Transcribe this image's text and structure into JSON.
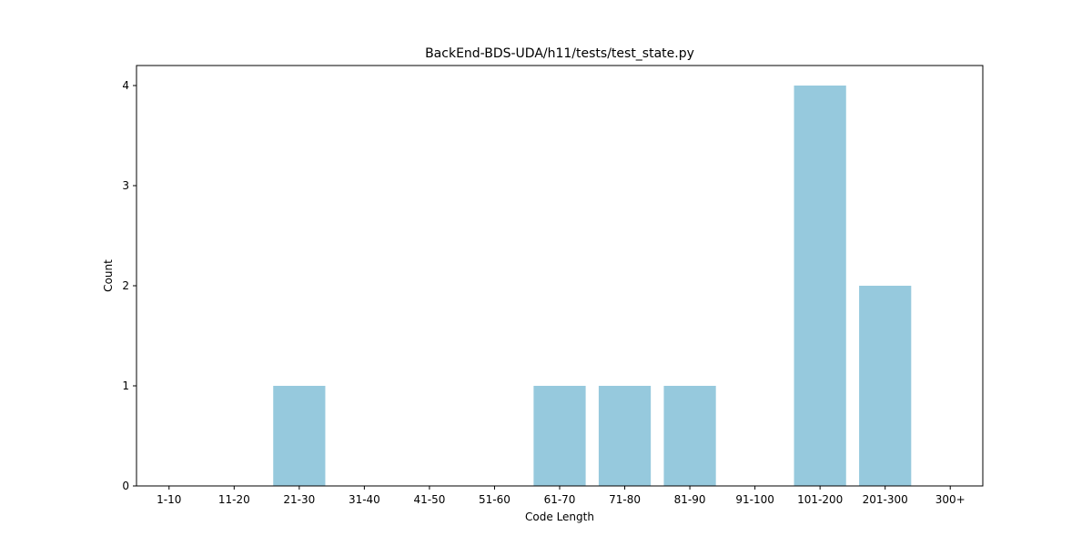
{
  "chart_data": {
    "type": "bar",
    "title": "BackEnd-BDS-UDA/h11/tests/test_state.py",
    "xlabel": "Code Length",
    "ylabel": "Count",
    "categories": [
      "1-10",
      "11-20",
      "21-30",
      "31-40",
      "41-50",
      "51-60",
      "61-70",
      "71-80",
      "81-90",
      "91-100",
      "101-200",
      "201-300",
      "300+"
    ],
    "values": [
      0,
      0,
      1,
      0,
      0,
      0,
      1,
      1,
      1,
      0,
      4,
      2,
      0
    ],
    "ylim": [
      0,
      4.2
    ],
    "yticks": [
      0,
      1,
      2,
      3,
      4
    ],
    "bar_color": "#96c9dd",
    "grid": false
  }
}
